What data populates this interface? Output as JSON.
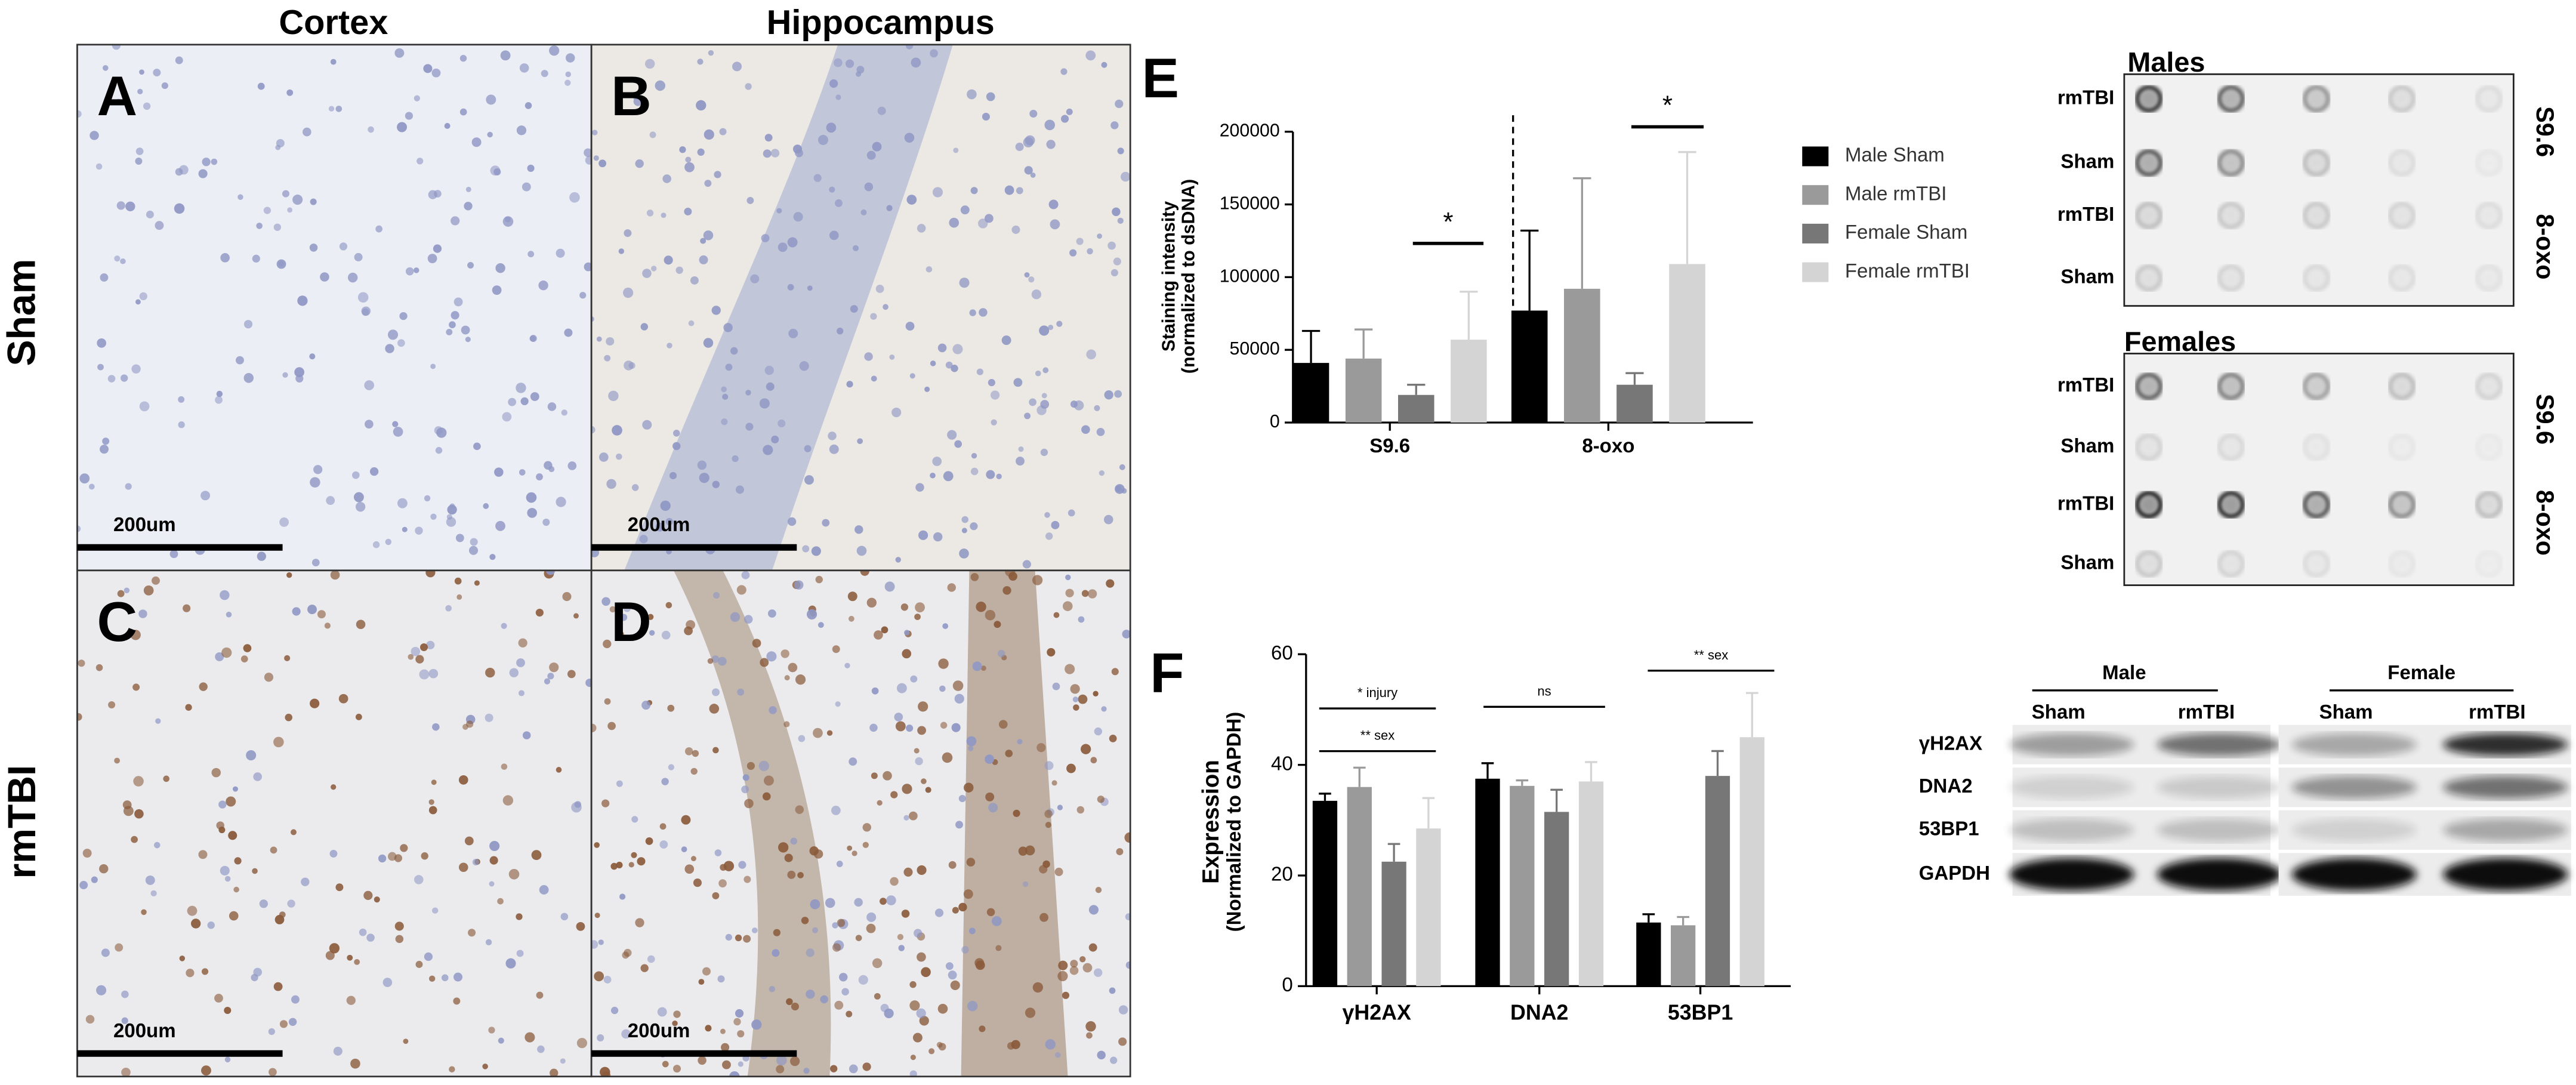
{
  "histology": {
    "columns": [
      "Cortex",
      "Hippocampus"
    ],
    "rows": [
      "Sham",
      "rmTBI"
    ],
    "panels": [
      {
        "letter": "A",
        "scale_bar": "200um"
      },
      {
        "letter": "B",
        "scale_bar": "200um"
      },
      {
        "letter": "C",
        "scale_bar": "200um"
      },
      {
        "letter": "D",
        "scale_bar": "200um"
      }
    ]
  },
  "chart_data": [
    {
      "type": "bar",
      "label": "E",
      "ylabel": [
        "Staining intensity",
        "(normalized to dsDNA)"
      ],
      "categories": [
        "S9.6",
        "8-oxo"
      ],
      "series": [
        {
          "name": "Male Sham",
          "color": "#000000",
          "values": [
            41000,
            77000
          ],
          "errors": [
            22000,
            55000
          ]
        },
        {
          "name": "Male rmTBI",
          "color": "#9a9a9a",
          "values": [
            44000,
            92000
          ],
          "errors": [
            20000,
            76000
          ]
        },
        {
          "name": "Female Sham",
          "color": "#777777",
          "values": [
            19000,
            26000
          ],
          "errors": [
            7000,
            8000
          ]
        },
        {
          "name": "Female rmTBI",
          "color": "#d4d4d4",
          "values": [
            57000,
            109000
          ],
          "errors": [
            33000,
            77000
          ]
        }
      ],
      "ylim": [
        0,
        200000
      ],
      "yticks": [
        0,
        50000,
        100000,
        150000,
        200000
      ],
      "annotations": [
        "*",
        "*"
      ]
    },
    {
      "type": "bar",
      "label": "F",
      "ylabel": [
        "Expression",
        "(Normalized to GAPDH)"
      ],
      "categories": [
        "γH2AX",
        "DNA2",
        "53BP1"
      ],
      "series": [
        {
          "color": "#000000",
          "values": [
            33.5,
            37.5,
            11.5
          ],
          "errors": [
            1.3,
            2.8,
            1.5
          ]
        },
        {
          "color": "#9a9a9a",
          "values": [
            36,
            36.2,
            11
          ],
          "errors": [
            3.5,
            1,
            1.5
          ]
        },
        {
          "color": "#777777",
          "values": [
            22.5,
            31.5,
            38
          ],
          "errors": [
            3.2,
            4,
            4.5
          ]
        },
        {
          "color": "#d4d4d4",
          "values": [
            28.5,
            37,
            45
          ],
          "errors": [
            5.5,
            3.5,
            8
          ]
        }
      ],
      "ylim": [
        0,
        60
      ],
      "yticks": [
        0,
        20,
        40,
        60
      ],
      "annotations": [
        "* injury",
        "** sex",
        "ns",
        "** sex"
      ]
    }
  ],
  "dot_blot": {
    "blots": [
      {
        "title": "Males",
        "row_labels": [
          "rmTBI",
          "Sham",
          "rmTBI",
          "Sham"
        ],
        "probes": [
          "S9.6",
          "8-oxo"
        ]
      },
      {
        "title": "Females",
        "row_labels": [
          "rmTBI",
          "Sham",
          "rmTBI",
          "Sham"
        ],
        "probes": [
          "S9.6",
          "8-oxo"
        ]
      }
    ]
  },
  "western_blot": {
    "groups": [
      {
        "name": "Male",
        "lanes": [
          "Sham",
          "rmTBI"
        ]
      },
      {
        "name": "Female",
        "lanes": [
          "Sham",
          "rmTBI"
        ]
      }
    ],
    "rows": [
      "γH2AX",
      "DNA2",
      "53BP1",
      "GAPDH"
    ]
  }
}
